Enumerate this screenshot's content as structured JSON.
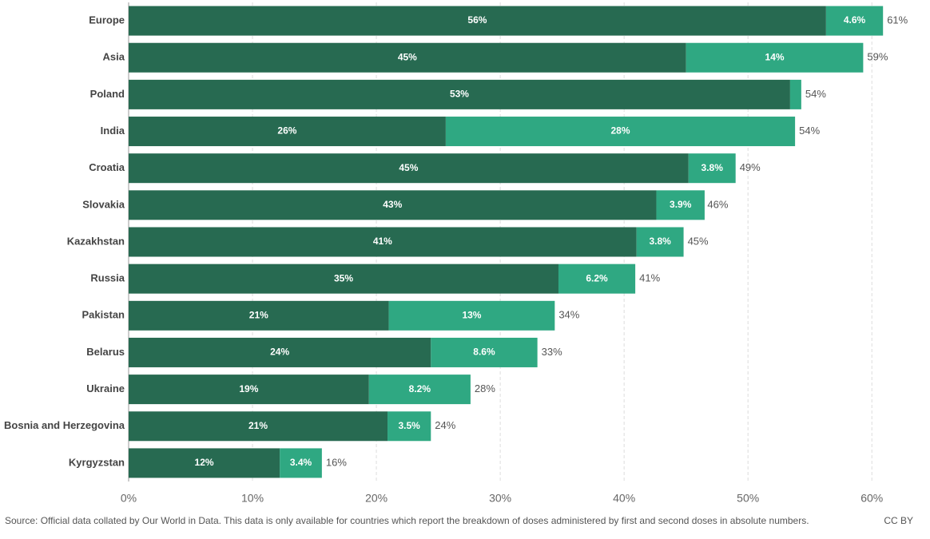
{
  "chart_data": {
    "type": "stacked-bar-horizontal",
    "categories": [
      "Europe",
      "Asia",
      "Poland",
      "India",
      "Croatia",
      "Slovakia",
      "Kazakhstan",
      "Russia",
      "Pakistan",
      "Belarus",
      "Ukraine",
      "Bosnia and Herzegovina",
      "Kyrgyzstan"
    ],
    "series": [
      {
        "color": "#276a51",
        "values": [
          56.3,
          45.0,
          53.4,
          25.6,
          45.2,
          42.6,
          41.0,
          34.7,
          21.0,
          24.4,
          19.4,
          20.9,
          12.2
        ],
        "value_labels": [
          "56%",
          "45%",
          "53%",
          "26%",
          "45%",
          "43%",
          "41%",
          "35%",
          "21%",
          "24%",
          "19%",
          "21%",
          "12%"
        ]
      },
      {
        "color": "#2fa882",
        "values": [
          4.6,
          14.3,
          0.9,
          28.2,
          3.8,
          3.9,
          3.8,
          6.2,
          13.4,
          8.6,
          8.2,
          3.5,
          3.4
        ],
        "value_labels": [
          "4.6%",
          "14%",
          null,
          "28%",
          "3.8%",
          "3.9%",
          "3.8%",
          "6.2%",
          "13%",
          "8.6%",
          "8.2%",
          "3.5%",
          "3.4%"
        ]
      }
    ],
    "totals": [
      60.9,
      59.3,
      54.3,
      53.8,
      49.0,
      46.4,
      44.8,
      40.9,
      34.4,
      33.0,
      27.6,
      24.4,
      15.6
    ],
    "total_labels": [
      "61%",
      "59%",
      "54%",
      "54%",
      "49%",
      "46%",
      "45%",
      "41%",
      "34%",
      "33%",
      "28%",
      "24%",
      "16%"
    ],
    "xlim": [
      0,
      62.5
    ],
    "xticks": [
      {
        "value": 0,
        "label": "0%"
      },
      {
        "value": 10,
        "label": "10%"
      },
      {
        "value": 20,
        "label": "20%"
      },
      {
        "value": 30,
        "label": "30%"
      },
      {
        "value": 40,
        "label": "40%"
      },
      {
        "value": 50,
        "label": "50%"
      },
      {
        "value": 60,
        "label": "60%"
      }
    ],
    "grid": true,
    "source": "Source: Official data collated by Our World in Data. This data is only available for countries which report the breakdown of doses administered by first and second doses in absolute numbers.",
    "license": "CC BY"
  }
}
